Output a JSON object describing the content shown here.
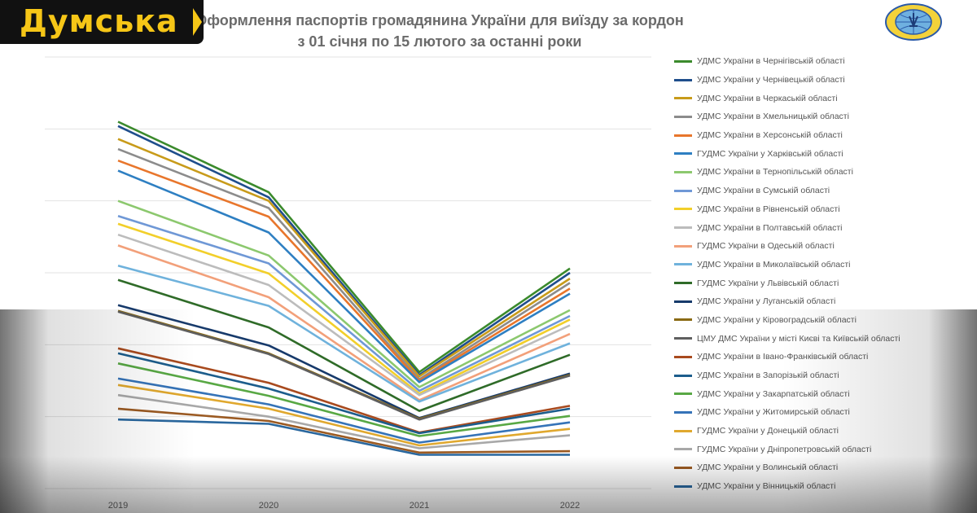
{
  "brand": {
    "name": "Думська"
  },
  "colors": {
    "brand_bg": "#111111",
    "brand_accent": "#f6c617"
  },
  "emblem": {
    "icon": "migration-service-emblem-icon"
  },
  "chart_data": {
    "type": "line",
    "title_lines": [
      "Оформлення паспортів громадянина України для виїзду за кордон",
      "з 01 січня по 15 лютого за останні роки"
    ],
    "categories": [
      "2019",
      "2020",
      "2021",
      "2022"
    ],
    "ylim": [
      0,
      6000
    ],
    "grid": true,
    "legend_position": "right",
    "series": [
      {
        "name": "УДМС України в Чернігівській області",
        "color": "#3b8a2c",
        "values": [
          5100,
          4120,
          1620,
          3060
        ]
      },
      {
        "name": "УДМС України у Чернівецькій області",
        "color": "#1f4e8c",
        "values": [
          5040,
          4050,
          1580,
          3000
        ]
      },
      {
        "name": "УДМС України в Черкаській області",
        "color": "#c89b1a",
        "values": [
          4860,
          4000,
          1560,
          2920
        ]
      },
      {
        "name": "УДМС України в Хмельницькій області",
        "color": "#8c8c8c",
        "values": [
          4720,
          3900,
          1520,
          2860
        ]
      },
      {
        "name": "УДМС України в Херсонській області",
        "color": "#e8762c",
        "values": [
          4560,
          3780,
          1500,
          2780
        ]
      },
      {
        "name": "ГУДМС України у Харківській області",
        "color": "#2e7fc2",
        "values": [
          4420,
          3560,
          1480,
          2710
        ]
      },
      {
        "name": "УДМС України в Тернопільській області",
        "color": "#8cc86e",
        "values": [
          4000,
          3240,
          1410,
          2480
        ]
      },
      {
        "name": "УДМС України в Сумській області",
        "color": "#6f98d6",
        "values": [
          3790,
          3130,
          1360,
          2400
        ]
      },
      {
        "name": "УДМС України в Рівненській області",
        "color": "#f2cf2a",
        "values": [
          3680,
          2990,
          1320,
          2350
        ]
      },
      {
        "name": "УДМС України в Полтавській області",
        "color": "#bcbcbc",
        "values": [
          3530,
          2830,
          1300,
          2270
        ]
      },
      {
        "name": "ГУДМС України в Одеській області",
        "color": "#f2a07a",
        "values": [
          3380,
          2660,
          1230,
          2150
        ]
      },
      {
        "name": "УДМС України в Миколаївській області",
        "color": "#6fb2dc",
        "values": [
          3100,
          2540,
          1210,
          2020
        ]
      },
      {
        "name": "ГУДМС України у Львівській області",
        "color": "#2f6b28",
        "values": [
          2900,
          2240,
          1080,
          1860
        ]
      },
      {
        "name": "УДМС України у Луганській області",
        "color": "#173a6b",
        "values": [
          2550,
          1990,
          980,
          1600
        ]
      },
      {
        "name": "УДМС України у Кіровоградській області",
        "color": "#8a6a14",
        "values": [
          2470,
          1880,
          970,
          1580
        ]
      },
      {
        "name": "ЦМУ ДМС України у місті Києві та Київській області",
        "color": "#5f5f5f",
        "values": [
          2460,
          1870,
          960,
          1570
        ]
      },
      {
        "name": "УДМС України в Івано-Франківській області",
        "color": "#a84a1e",
        "values": [
          1950,
          1470,
          780,
          1150
        ]
      },
      {
        "name": "УДМС України в Запорізькій області",
        "color": "#1c5d8c",
        "values": [
          1880,
          1390,
          770,
          1110
        ]
      },
      {
        "name": "УДМС України у Закарпатській області",
        "color": "#58a844",
        "values": [
          1740,
          1290,
          730,
          1010
        ]
      },
      {
        "name": "УДМС України у Житомирській області",
        "color": "#3573b8",
        "values": [
          1530,
          1170,
          640,
          920
        ]
      },
      {
        "name": "ГУДМС України у Донецькій області",
        "color": "#e0a82e",
        "values": [
          1440,
          1110,
          600,
          830
        ]
      },
      {
        "name": "ГУДМС України у Дніпропетровській області",
        "color": "#a8a8a8",
        "values": [
          1300,
          1000,
          560,
          740
        ]
      },
      {
        "name": "УДМС України у Волинській області",
        "color": "#9b5a22",
        "values": [
          1110,
          940,
          500,
          520
        ]
      },
      {
        "name": "УДМС України у Вінницькій області",
        "color": "#29679e",
        "values": [
          960,
          900,
          470,
          470
        ]
      }
    ]
  }
}
